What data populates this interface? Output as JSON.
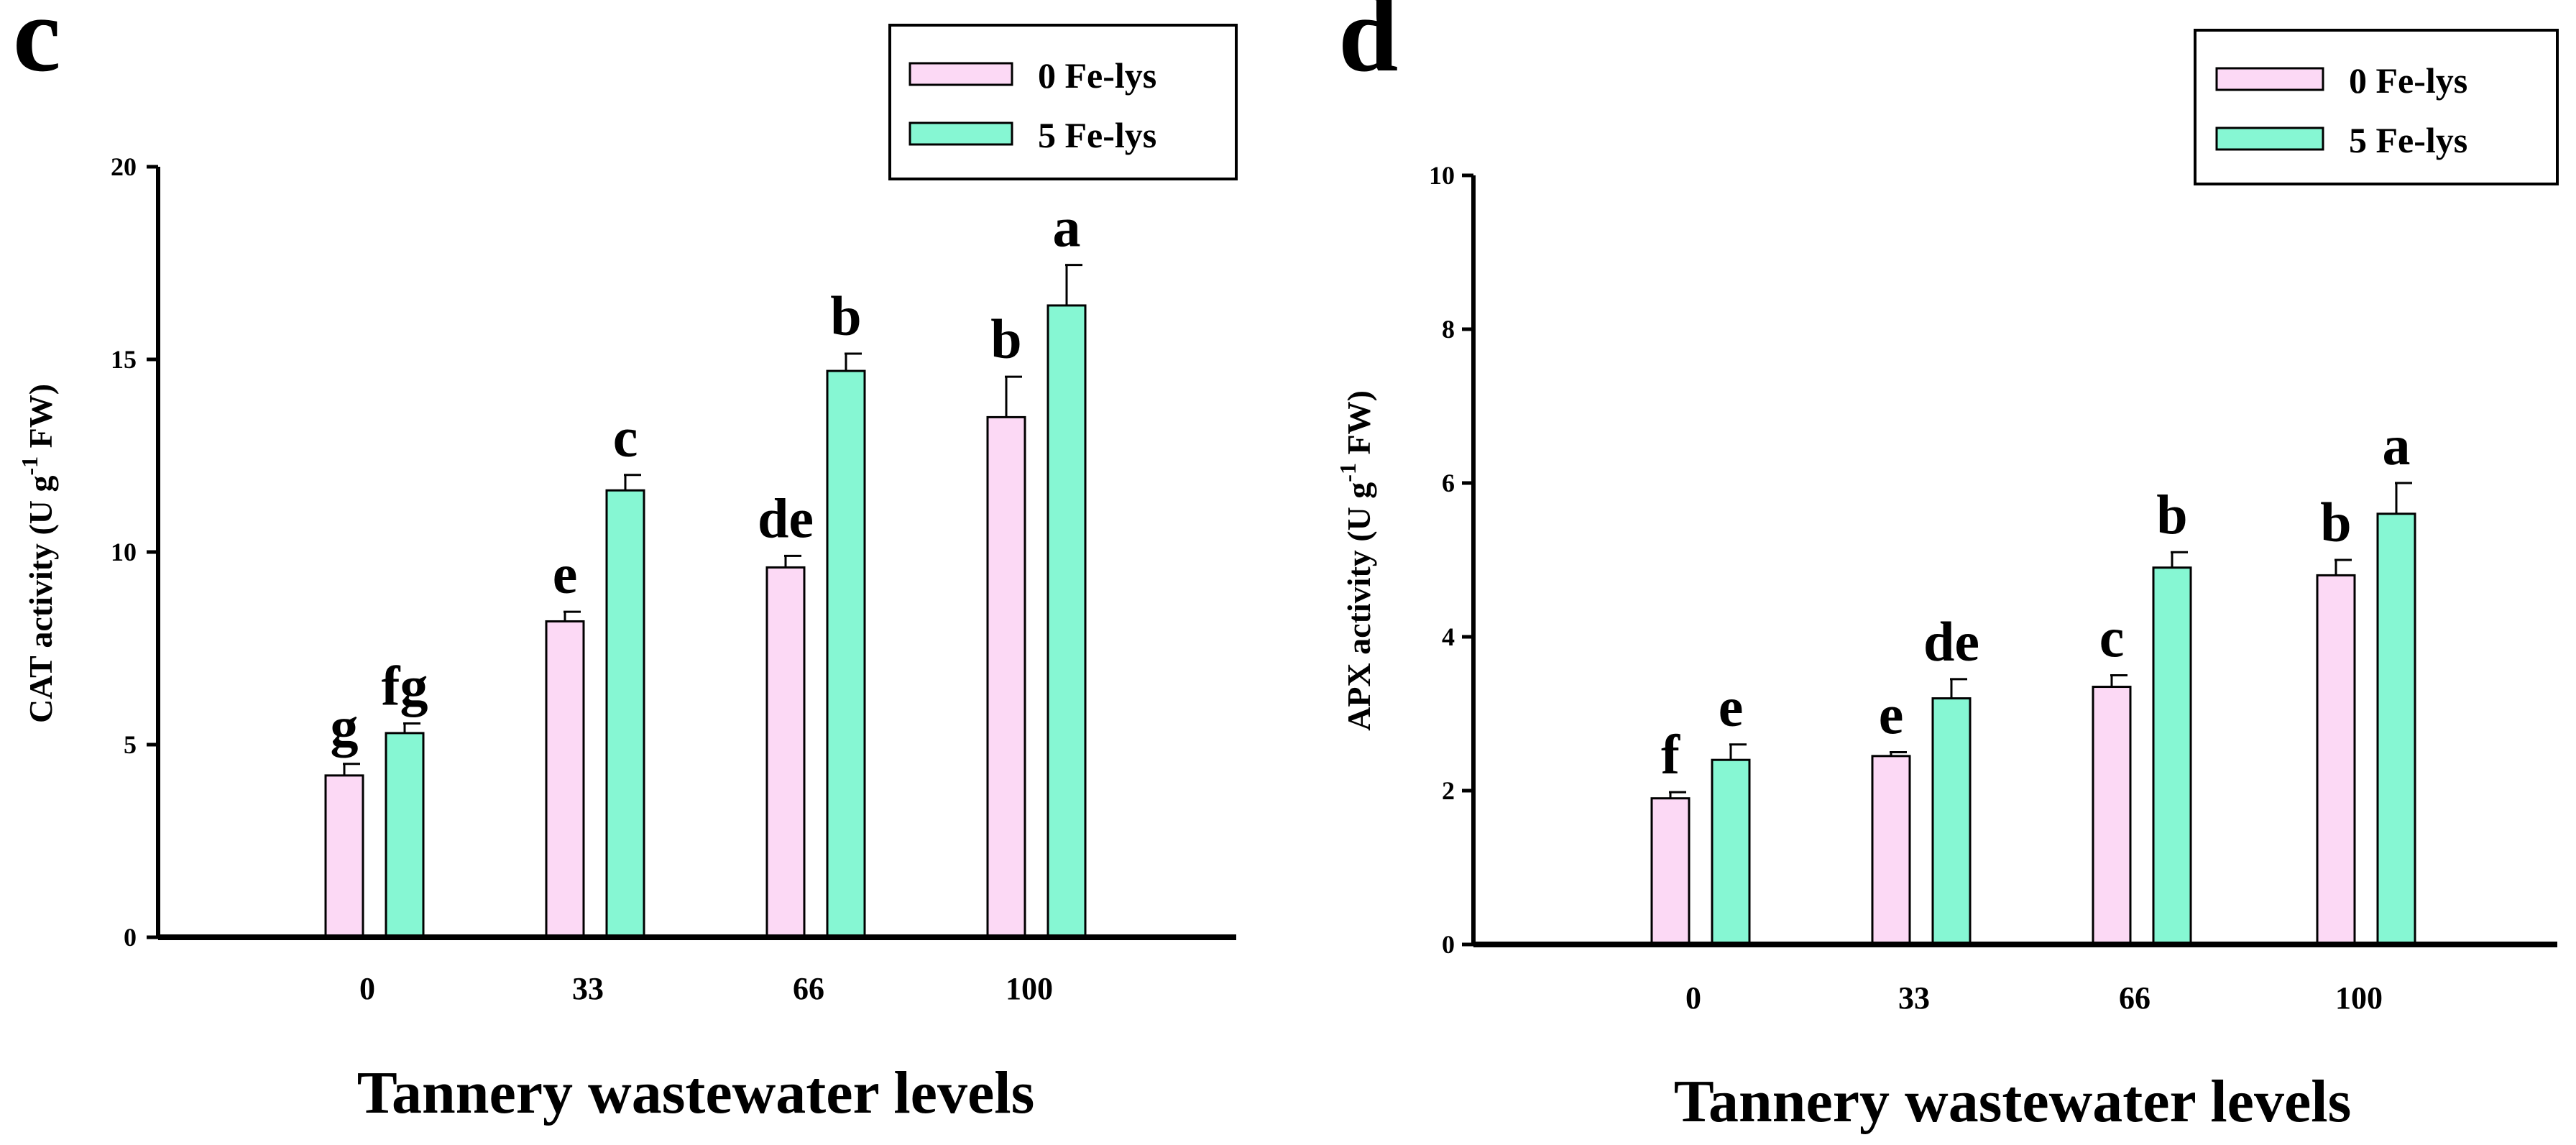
{
  "chart_data": [
    {
      "panel": "c",
      "type": "bar",
      "categories": [
        "0",
        "33",
        "66",
        "100"
      ],
      "series": [
        {
          "name": "0 Fe-lys",
          "color": "#fcd9f5",
          "values": [
            4.2,
            8.2,
            9.6,
            13.5
          ],
          "errors": [
            0.3,
            0.25,
            0.3,
            1.05
          ],
          "labels": [
            "g",
            "e",
            "de",
            "b"
          ]
        },
        {
          "name": "5 Fe-lys",
          "color": "#86f7d3",
          "values": [
            5.3,
            11.6,
            14.7,
            16.4
          ],
          "errors": [
            0.25,
            0.4,
            0.45,
            1.05
          ],
          "labels": [
            "fg",
            "c",
            "b",
            "a"
          ]
        }
      ],
      "title": "",
      "xlabel": "Tannery wastewater levels",
      "ylabel_main": "CAT activity (U g",
      "ylabel_sup": "-1",
      "ylabel_tail": " FW)",
      "ylim": [
        0,
        20
      ],
      "yticks": [
        "0",
        "5",
        "10",
        "15",
        "20"
      ],
      "legend": "top-right",
      "grid": false
    },
    {
      "panel": "d",
      "type": "bar",
      "categories": [
        "0",
        "33",
        "66",
        "100"
      ],
      "series": [
        {
          "name": "0 Fe-lys",
          "color": "#fcd9f5",
          "values": [
            1.9,
            2.45,
            3.35,
            4.8
          ],
          "errors": [
            0.08,
            0.05,
            0.15,
            0.2
          ],
          "labels": [
            "f",
            "e",
            "c",
            "b"
          ]
        },
        {
          "name": "5 Fe-lys",
          "color": "#86f7d3",
          "values": [
            2.4,
            3.2,
            4.9,
            5.6
          ],
          "errors": [
            0.2,
            0.25,
            0.2,
            0.4
          ],
          "labels": [
            "e",
            "de",
            "b",
            "a"
          ]
        }
      ],
      "title": "",
      "xlabel": "Tannery wastewater levels",
      "ylabel_main": "APX activity (U g",
      "ylabel_sup": "-1",
      "ylabel_tail": " FW)",
      "ylim": [
        0,
        10
      ],
      "yticks": [
        "0",
        "2",
        "4",
        "6",
        "8",
        "10"
      ],
      "legend": "top-right",
      "grid": false
    }
  ]
}
